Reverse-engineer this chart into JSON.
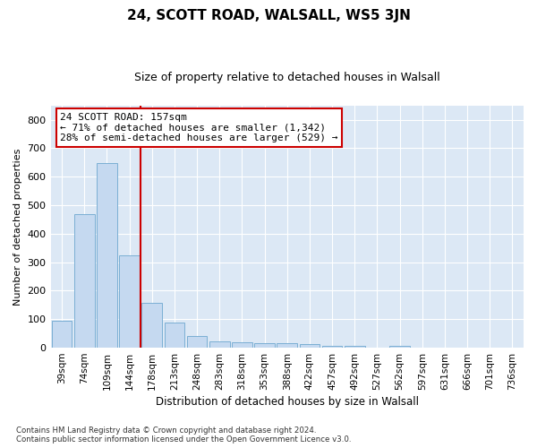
{
  "title": "24, SCOTT ROAD, WALSALL, WS5 3JN",
  "subtitle": "Size of property relative to detached houses in Walsall",
  "xlabel": "Distribution of detached houses by size in Walsall",
  "ylabel": "Number of detached properties",
  "categories": [
    "39sqm",
    "74sqm",
    "109sqm",
    "144sqm",
    "178sqm",
    "213sqm",
    "248sqm",
    "283sqm",
    "318sqm",
    "353sqm",
    "388sqm",
    "422sqm",
    "457sqm",
    "492sqm",
    "527sqm",
    "562sqm",
    "597sqm",
    "631sqm",
    "666sqm",
    "701sqm",
    "736sqm"
  ],
  "values": [
    95,
    470,
    648,
    323,
    157,
    88,
    40,
    22,
    20,
    15,
    15,
    12,
    8,
    5,
    0,
    6,
    0,
    0,
    0,
    0,
    0
  ],
  "bar_color": "#c5d9f0",
  "bar_edge_color": "#7bafd4",
  "red_line_x": 3.5,
  "annotation_text": "24 SCOTT ROAD: 157sqm\n← 71% of detached houses are smaller (1,342)\n28% of semi-detached houses are larger (529) →",
  "annotation_box_color": "#ffffff",
  "annotation_box_edge_color": "#cc0000",
  "red_line_color": "#cc0000",
  "background_color": "#dce8f5",
  "grid_color": "#ffffff",
  "fig_background": "#ffffff",
  "footer_text": "Contains HM Land Registry data © Crown copyright and database right 2024.\nContains public sector information licensed under the Open Government Licence v3.0.",
  "ylim": [
    0,
    850
  ],
  "yticks": [
    0,
    100,
    200,
    300,
    400,
    500,
    600,
    700,
    800
  ]
}
